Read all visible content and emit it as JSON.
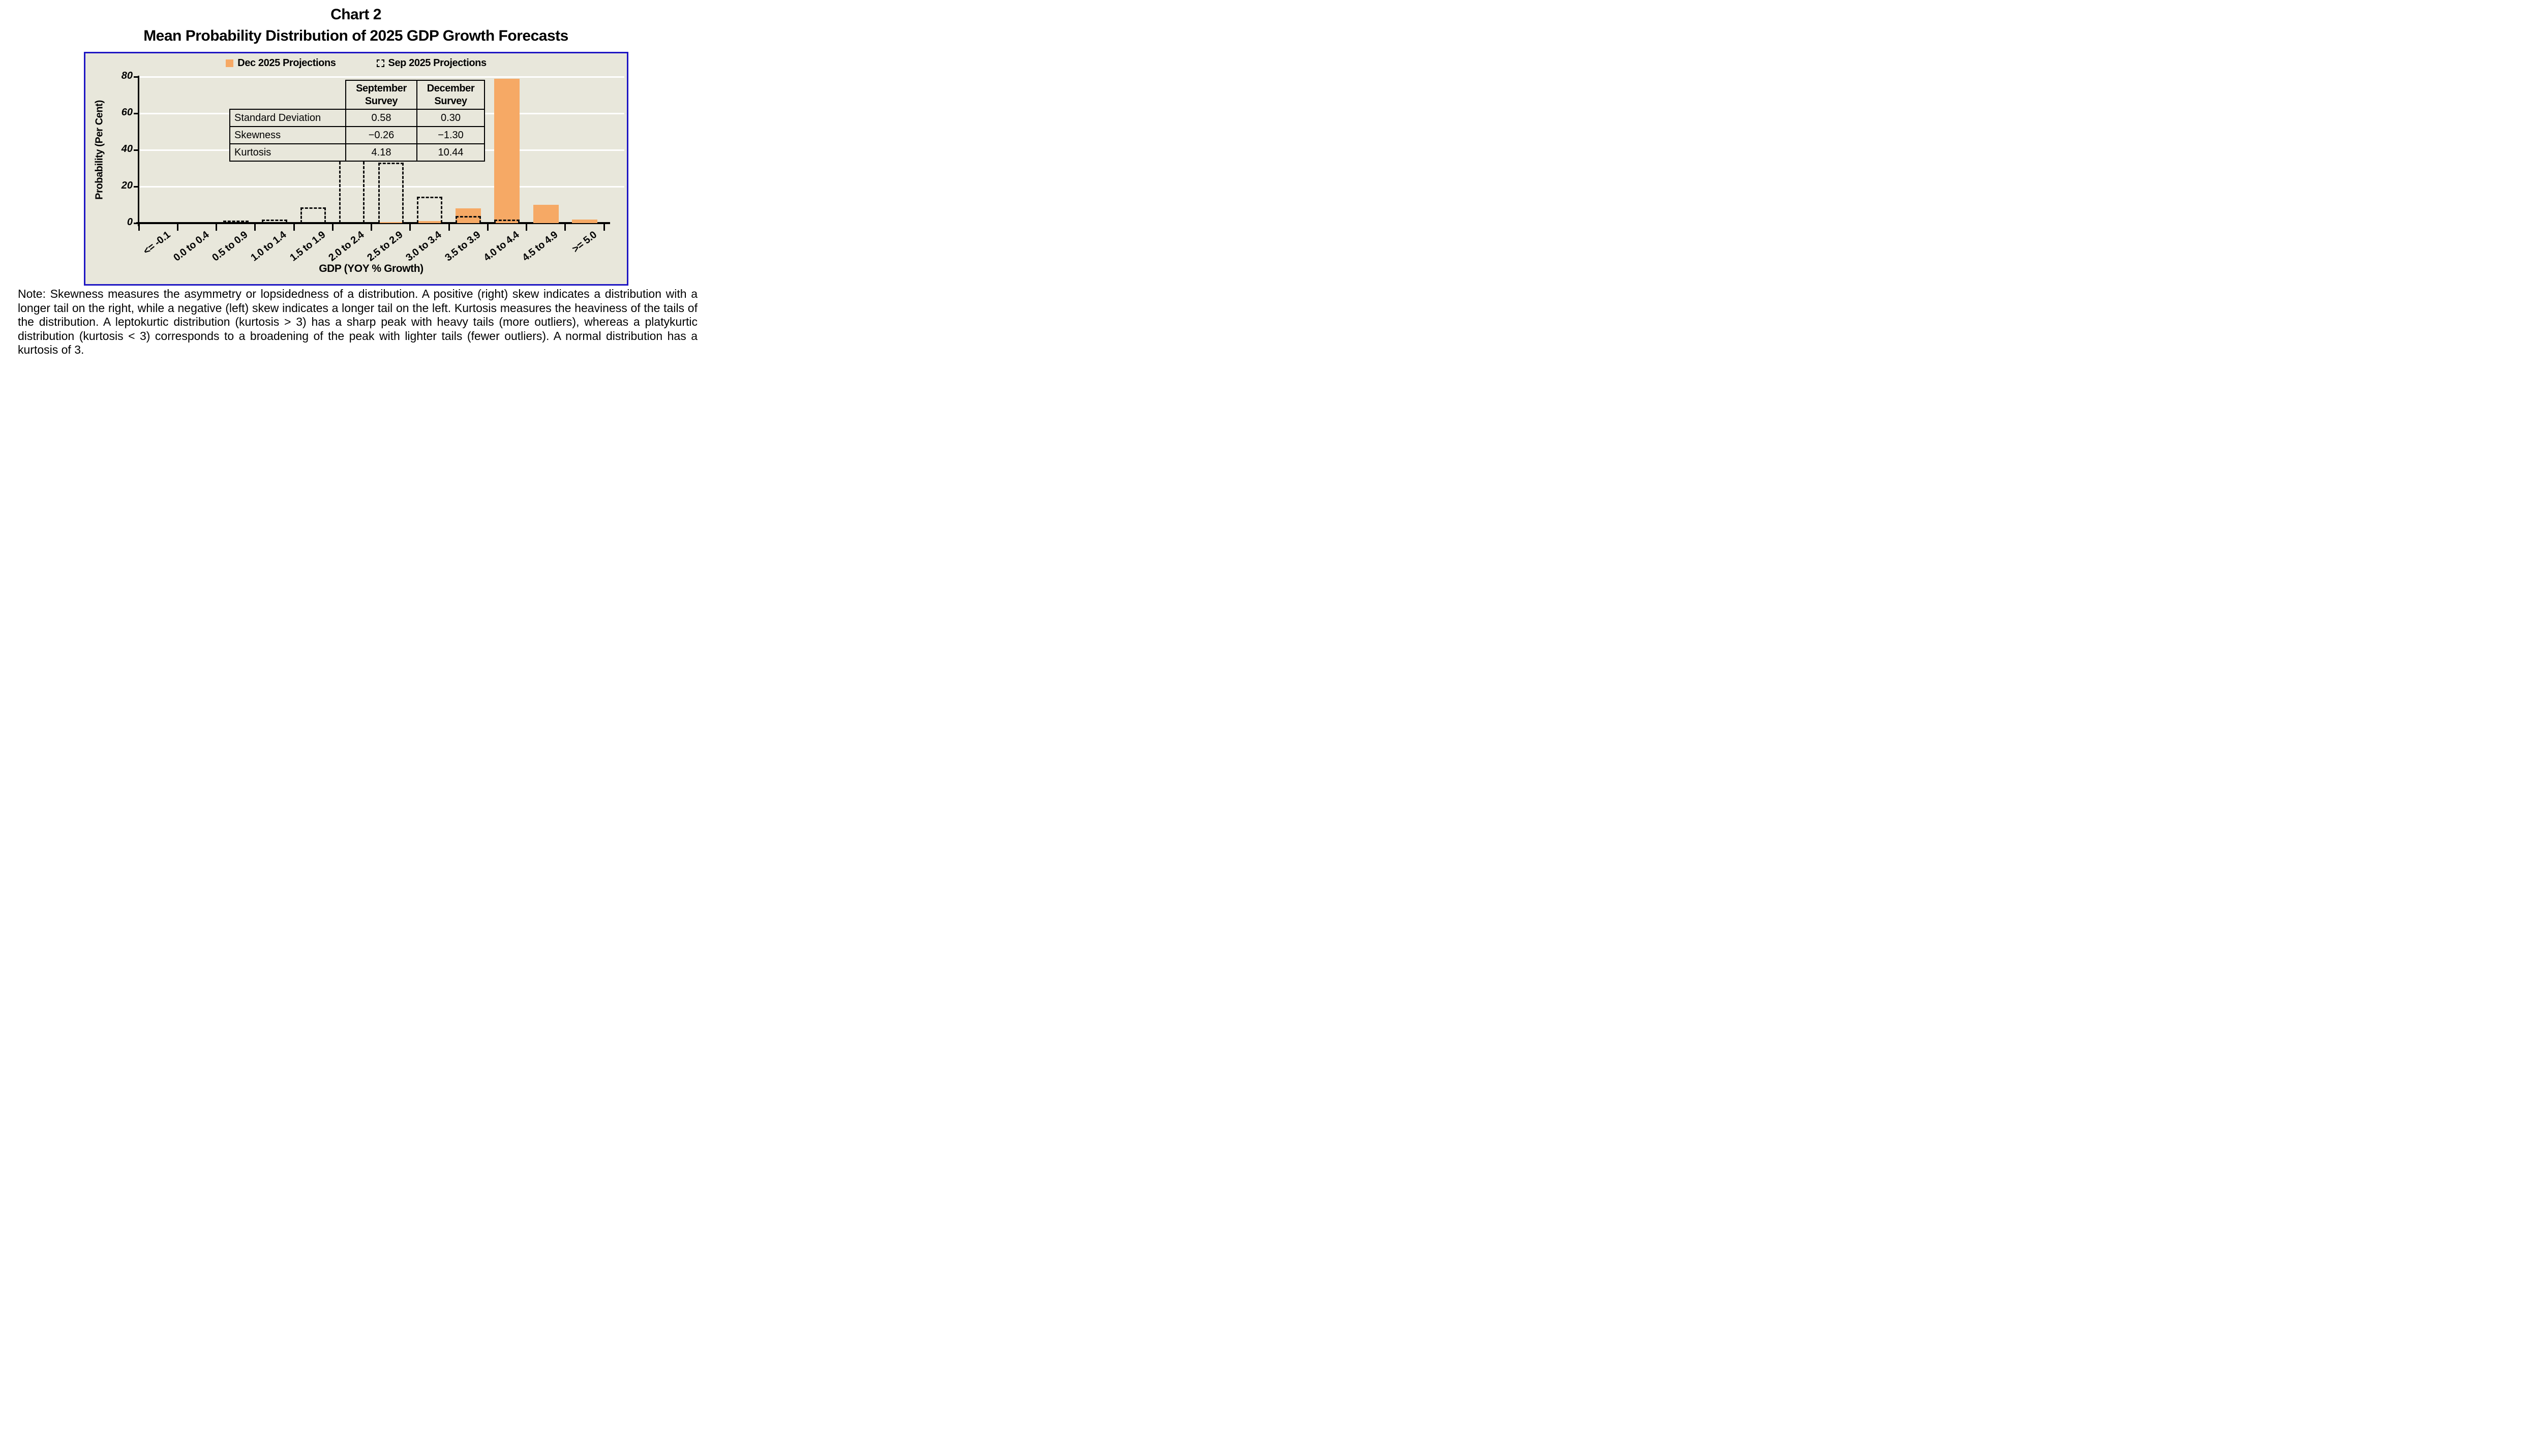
{
  "page": {
    "title_line1": "Chart 2",
    "title_line2": "Mean Probability Distribution of 2025 GDP Growth Forecasts",
    "note": "Note: Skewness measures the asymmetry or lopsidedness of a distribution. A positive (right) skew indicates a distribution with a longer tail on the right, while a negative (left) skew indicates a longer tail on the left. Kurtosis measures the heaviness of the tails of the distribution. A leptokurtic distribution (kurtosis > 3) has a sharp peak with heavy tails (more outliers), whereas a platykurtic distribution (kurtosis < 3) corresponds to a broadening of the peak with lighter tails (fewer outliers). A normal distribution has a kurtosis of 3."
  },
  "legend": [
    {
      "label": "Dec 2025 Projections",
      "marker": "filled-square",
      "color": "#F6A965"
    },
    {
      "label": "Sep 2025 Projections",
      "marker": "dashed-square",
      "color": "#000000"
    }
  ],
  "stats_table": {
    "col_headers": [
      "September Survey",
      "December Survey"
    ],
    "rows": [
      {
        "label": "Standard Deviation",
        "september": "0.58",
        "december": "0.30"
      },
      {
        "label": "Skewness",
        "september": "−0.26",
        "december": "−1.30"
      },
      {
        "label": "Kurtosis",
        "september": "4.18",
        "december": "10.44"
      }
    ]
  },
  "chart_data": {
    "type": "bar",
    "title": "Mean Probability Distribution of 2025 GDP Growth Forecasts",
    "xlabel": "GDP (YOY % Growth)",
    "ylabel": "Probability (Per Cent)",
    "ylim": [
      0,
      80
    ],
    "yticks": [
      0,
      20,
      40,
      60,
      80
    ],
    "grid": "horizontal white gridlines",
    "legend_position": "top-center",
    "categories": [
      "<= -0.1",
      "0.0 to 0.4",
      "0.5 to 0.9",
      "1.0 to 1.4",
      "1.5 to 1.9",
      "2.0 to 2.4",
      "2.5 to 2.9",
      "3.0 to 3.4",
      "3.5 to 3.9",
      "4.0 to 4.4",
      "4.5 to 4.9",
      ">= 5.0"
    ],
    "series": [
      {
        "name": "Dec 2025 Projections",
        "style": "filled",
        "color": "#F6A965",
        "values": [
          0,
          0,
          0,
          0,
          0,
          0,
          0.5,
          1,
          8,
          79,
          10,
          2
        ]
      },
      {
        "name": "Sep 2025 Projections",
        "style": "dashed-outline",
        "color": "#0d0d0d",
        "values": [
          0,
          0,
          1.5,
          2,
          8.5,
          36,
          33,
          14.5,
          4,
          2,
          0,
          0
        ]
      }
    ]
  },
  "colors": {
    "bar_fill": "#F6A965",
    "plot_background": "#E8E7DB",
    "frame_border": "#1E16C3",
    "gridline": "#FFFFFF",
    "axis": "#000000",
    "page_background": "#FFFFFF"
  }
}
